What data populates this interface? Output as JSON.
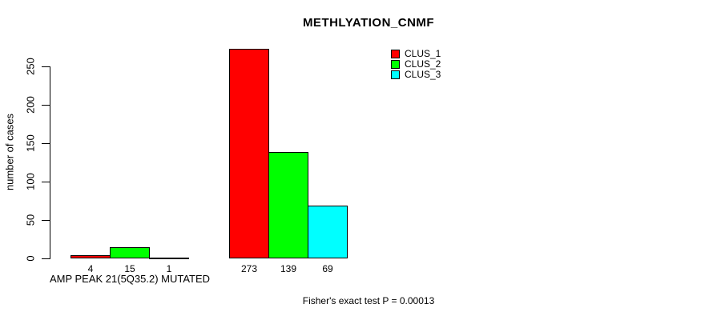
{
  "chart_data": {
    "type": "bar",
    "grouped": true,
    "title": "METHLYATION_CNMF",
    "ylabel": "number of cases",
    "yticks": [
      0,
      50,
      100,
      150,
      200,
      250
    ],
    "ylim": [
      0,
      285
    ],
    "grid": false,
    "group_labels": [
      "AMP PEAK 21(5Q35.2) MUTATED",
      ""
    ],
    "series": [
      {
        "name": "CLUS_1",
        "color": "#FF0000",
        "values": [
          4,
          273
        ]
      },
      {
        "name": "CLUS_2",
        "color": "#00FF00",
        "values": [
          15,
          139
        ]
      },
      {
        "name": "CLUS_3",
        "color": "#00FFFF",
        "values": [
          1,
          69
        ]
      }
    ],
    "legend": {
      "position": "top-right",
      "entries": [
        "CLUS_1",
        "CLUS_2",
        "CLUS_3"
      ]
    },
    "annotation": "Fisher's exact test P = 0.00013",
    "colors": {
      "axis": "#000000",
      "bar_border": "#000000",
      "background": "#FFFFFF",
      "text": "#000000"
    }
  }
}
